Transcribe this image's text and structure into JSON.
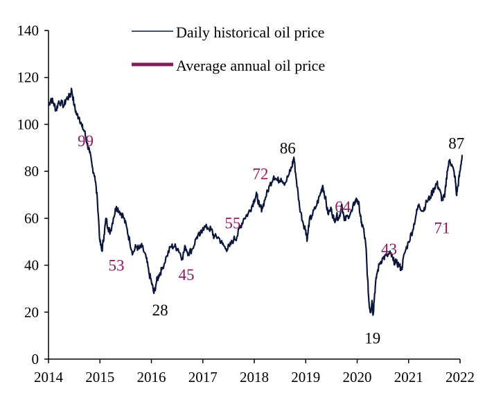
{
  "chart_data": {
    "type": "line",
    "title": "",
    "xlabel": "",
    "ylabel": "",
    "xlim": [
      2014,
      2022
    ],
    "ylim": [
      0,
      140
    ],
    "grid": false,
    "legend_position": "top",
    "x_ticks": [
      "2014",
      "2015",
      "2016",
      "2017",
      "2018",
      "2019",
      "2020",
      "2021",
      "2022"
    ],
    "y_ticks": [
      "0",
      "20",
      "40",
      "60",
      "80",
      "100",
      "120",
      "140"
    ],
    "colors": {
      "daily": "#0b1638",
      "average": "#8b1a5a",
      "peak_label": "#000000"
    },
    "series": [
      {
        "name": "Daily historical oil price",
        "points": [
          [
            2014.0,
            108
          ],
          [
            2014.05,
            111
          ],
          [
            2014.1,
            109
          ],
          [
            2014.15,
            106
          ],
          [
            2014.2,
            110
          ],
          [
            2014.3,
            108
          ],
          [
            2014.35,
            111
          ],
          [
            2014.42,
            112
          ],
          [
            2014.45,
            115
          ],
          [
            2014.5,
            108
          ],
          [
            2014.55,
            104
          ],
          [
            2014.6,
            103
          ],
          [
            2014.65,
            99
          ],
          [
            2014.7,
            97
          ],
          [
            2014.75,
            92
          ],
          [
            2014.8,
            88
          ],
          [
            2014.85,
            82
          ],
          [
            2014.9,
            78
          ],
          [
            2014.95,
            68
          ],
          [
            2015.0,
            50
          ],
          [
            2015.04,
            46
          ],
          [
            2015.08,
            53
          ],
          [
            2015.12,
            60
          ],
          [
            2015.16,
            56
          ],
          [
            2015.2,
            54
          ],
          [
            2015.26,
            60
          ],
          [
            2015.32,
            65
          ],
          [
            2015.38,
            63
          ],
          [
            2015.45,
            61
          ],
          [
            2015.52,
            56
          ],
          [
            2015.58,
            50
          ],
          [
            2015.64,
            45
          ],
          [
            2015.7,
            48
          ],
          [
            2015.76,
            47
          ],
          [
            2015.82,
            48
          ],
          [
            2015.9,
            43
          ],
          [
            2015.95,
            37
          ],
          [
            2016.0,
            33
          ],
          [
            2016.05,
            28
          ],
          [
            2016.1,
            33
          ],
          [
            2016.15,
            36
          ],
          [
            2016.2,
            38
          ],
          [
            2016.3,
            44
          ],
          [
            2016.38,
            48
          ],
          [
            2016.45,
            48
          ],
          [
            2016.52,
            47
          ],
          [
            2016.6,
            43
          ],
          [
            2016.66,
            48
          ],
          [
            2016.72,
            45
          ],
          [
            2016.8,
            47
          ],
          [
            2016.88,
            52
          ],
          [
            2016.95,
            53
          ],
          [
            2017.0,
            56
          ],
          [
            2017.1,
            56
          ],
          [
            2017.17,
            55
          ],
          [
            2017.22,
            52
          ],
          [
            2017.3,
            52
          ],
          [
            2017.38,
            49
          ],
          [
            2017.45,
            47
          ],
          [
            2017.52,
            48
          ],
          [
            2017.6,
            51
          ],
          [
            2017.66,
            52
          ],
          [
            2017.72,
            56
          ],
          [
            2017.8,
            60
          ],
          [
            2017.88,
            62
          ],
          [
            2017.95,
            65
          ],
          [
            2018.0,
            68
          ],
          [
            2018.05,
            70
          ],
          [
            2018.1,
            65
          ],
          [
            2018.15,
            64
          ],
          [
            2018.22,
            69
          ],
          [
            2018.3,
            74
          ],
          [
            2018.38,
            78
          ],
          [
            2018.45,
            76
          ],
          [
            2018.52,
            77
          ],
          [
            2018.6,
            75
          ],
          [
            2018.68,
            79
          ],
          [
            2018.73,
            82
          ],
          [
            2018.77,
            86
          ],
          [
            2018.82,
            76
          ],
          [
            2018.88,
            65
          ],
          [
            2018.95,
            58
          ],
          [
            2019.0,
            55
          ],
          [
            2019.03,
            51
          ],
          [
            2019.07,
            59
          ],
          [
            2019.12,
            61
          ],
          [
            2019.2,
            65
          ],
          [
            2019.28,
            70
          ],
          [
            2019.33,
            74
          ],
          [
            2019.38,
            69
          ],
          [
            2019.43,
            62
          ],
          [
            2019.5,
            64
          ],
          [
            2019.55,
            59
          ],
          [
            2019.6,
            61
          ],
          [
            2019.65,
            60
          ],
          [
            2019.7,
            66
          ],
          [
            2019.75,
            59
          ],
          [
            2019.82,
            61
          ],
          [
            2019.9,
            63
          ],
          [
            2019.95,
            67
          ],
          [
            2020.0,
            68
          ],
          [
            2020.04,
            65
          ],
          [
            2020.08,
            58
          ],
          [
            2020.12,
            56
          ],
          [
            2020.17,
            48
          ],
          [
            2020.2,
            35
          ],
          [
            2020.23,
            24
          ],
          [
            2020.26,
            20
          ],
          [
            2020.29,
            25
          ],
          [
            2020.31,
            19
          ],
          [
            2020.34,
            28
          ],
          [
            2020.38,
            36
          ],
          [
            2020.44,
            41
          ],
          [
            2020.5,
            43
          ],
          [
            2020.58,
            44
          ],
          [
            2020.65,
            45
          ],
          [
            2020.7,
            42
          ],
          [
            2020.76,
            41
          ],
          [
            2020.82,
            40
          ],
          [
            2020.86,
            38
          ],
          [
            2020.92,
            45
          ],
          [
            2021.0,
            50
          ],
          [
            2021.08,
            55
          ],
          [
            2021.15,
            62
          ],
          [
            2021.2,
            66
          ],
          [
            2021.28,
            63
          ],
          [
            2021.35,
            67
          ],
          [
            2021.42,
            69
          ],
          [
            2021.5,
            73
          ],
          [
            2021.55,
            75
          ],
          [
            2021.6,
            72
          ],
          [
            2021.65,
            68
          ],
          [
            2021.7,
            69
          ],
          [
            2021.75,
            80
          ],
          [
            2021.8,
            85
          ],
          [
            2021.85,
            82
          ],
          [
            2021.9,
            78
          ],
          [
            2021.93,
            70
          ],
          [
            2021.96,
            74
          ],
          [
            2022.0,
            80
          ],
          [
            2022.04,
            87
          ]
        ]
      }
    ],
    "legend": [
      {
        "label": "Daily historical oil price",
        "style": "thin",
        "color": "#0b1638"
      },
      {
        "label": "Average annual oil price",
        "style": "thick",
        "color": "#8b1a5a"
      }
    ],
    "annotations": [
      {
        "text": "99",
        "kind": "average",
        "at": [
          2014.72,
          93
        ]
      },
      {
        "text": "53",
        "kind": "average",
        "at": [
          2015.32,
          40
        ]
      },
      {
        "text": "45",
        "kind": "average",
        "at": [
          2016.68,
          36
        ]
      },
      {
        "text": "55",
        "kind": "average",
        "at": [
          2017.58,
          58
        ]
      },
      {
        "text": "72",
        "kind": "average",
        "at": [
          2018.12,
          79
        ]
      },
      {
        "text": "64",
        "kind": "average",
        "at": [
          2019.72,
          65
        ]
      },
      {
        "text": "43",
        "kind": "average",
        "at": [
          2020.62,
          47
        ]
      },
      {
        "text": "71",
        "kind": "average",
        "at": [
          2021.65,
          56
        ]
      },
      {
        "text": "86",
        "kind": "extreme",
        "at": [
          2018.65,
          90
        ]
      },
      {
        "text": "28",
        "kind": "extreme",
        "at": [
          2016.17,
          21
        ]
      },
      {
        "text": "19",
        "kind": "extreme",
        "at": [
          2020.3,
          9
        ]
      },
      {
        "text": "87",
        "kind": "extreme",
        "at": [
          2021.93,
          92
        ]
      }
    ]
  }
}
